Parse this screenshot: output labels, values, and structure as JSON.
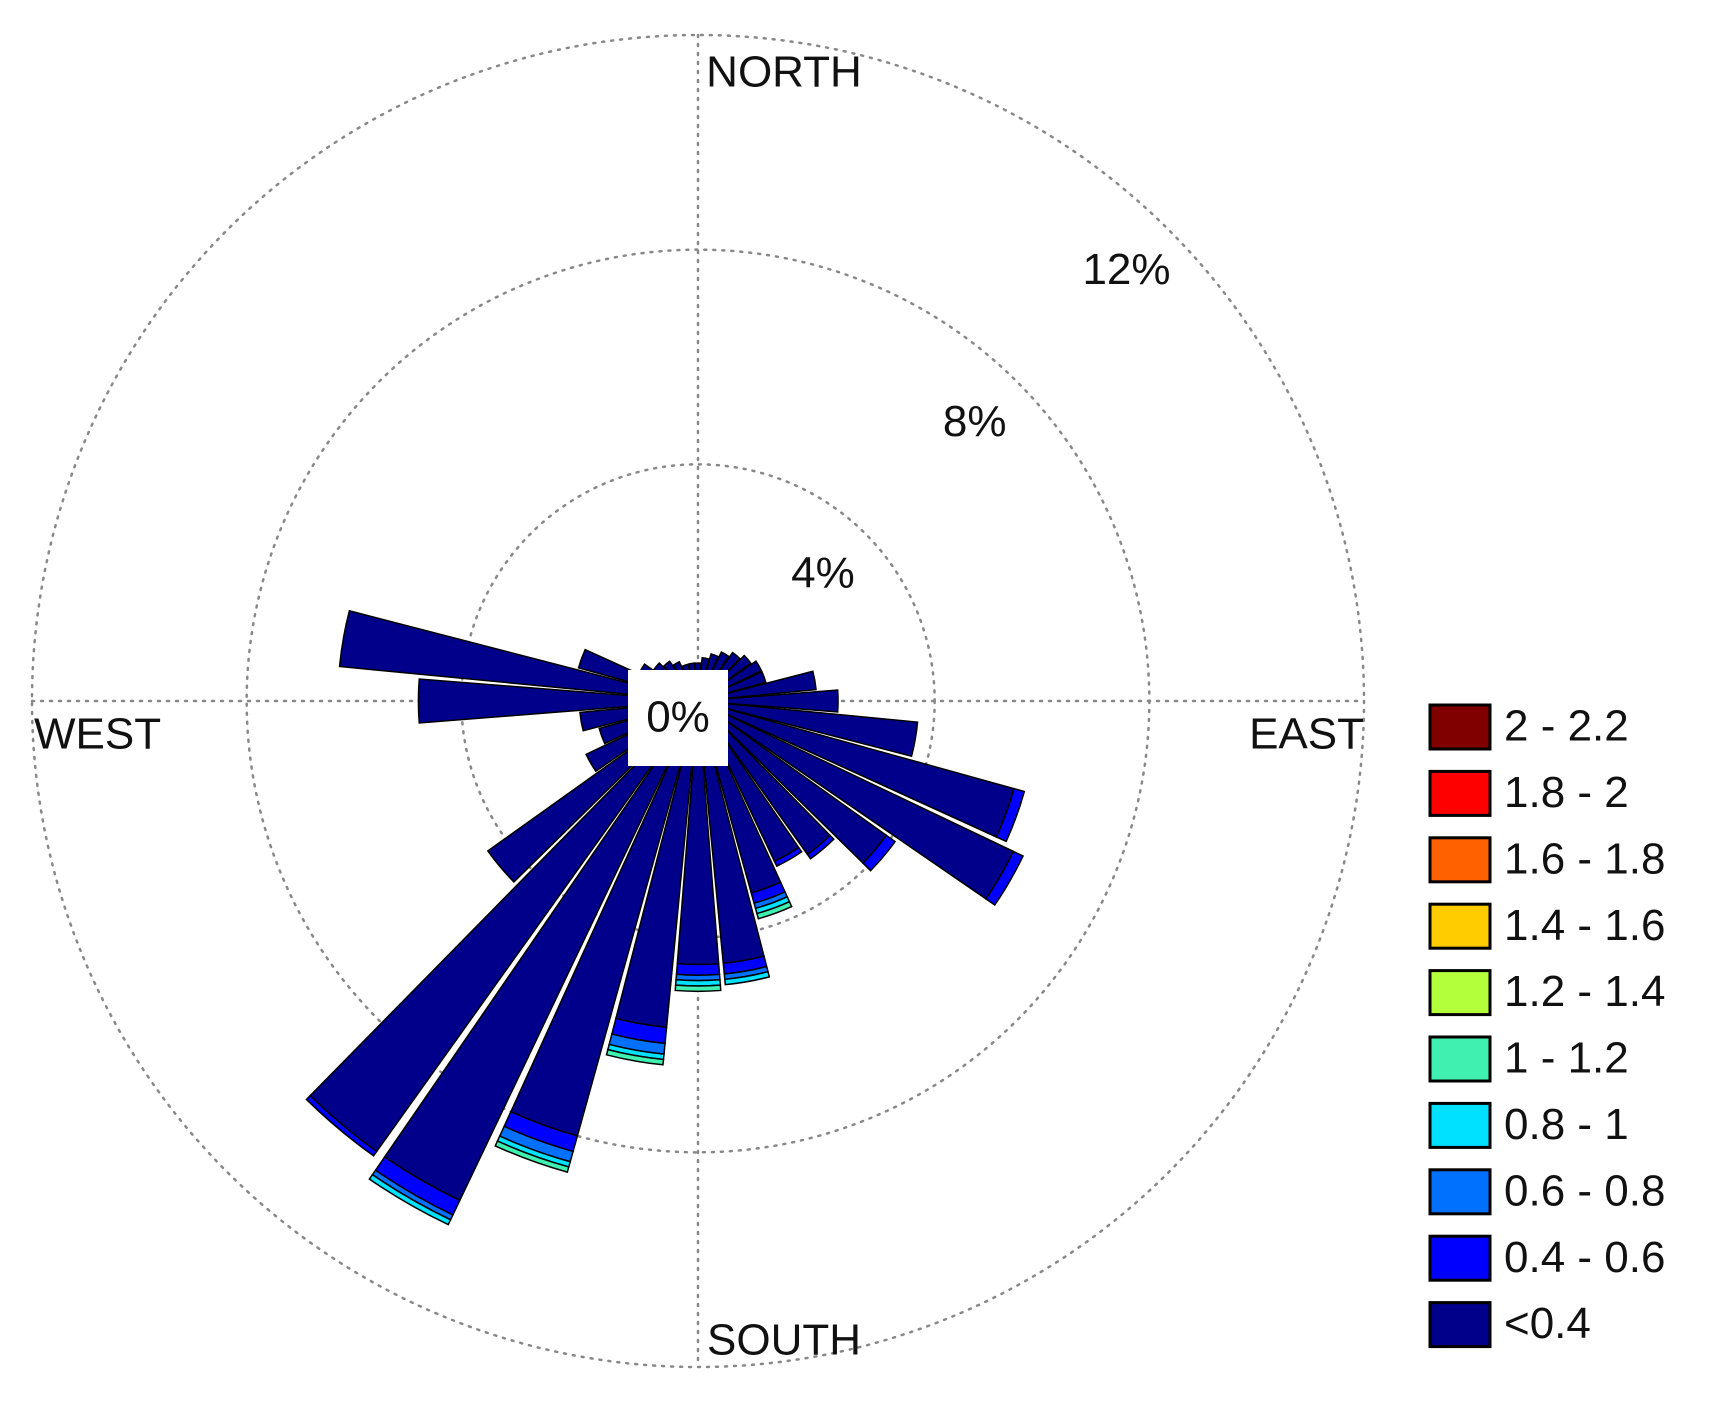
{
  "chart_data": {
    "type": "windrose",
    "direction_labels": {
      "north": "NORTH",
      "east": "EAST",
      "south": "SOUTH",
      "west": "WEST"
    },
    "directions": [
      0,
      10,
      20,
      30,
      40,
      50,
      60,
      70,
      80,
      90,
      100,
      110,
      120,
      130,
      140,
      150,
      160,
      170,
      180,
      190,
      200,
      210,
      220,
      230,
      240,
      250,
      260,
      270,
      280,
      290,
      300,
      310,
      320,
      330,
      340,
      350
    ],
    "rlim": [
      0,
      12
    ],
    "rticks": [
      {
        "value": 0,
        "label": "0%"
      },
      {
        "value": 4,
        "label": "4%"
      },
      {
        "value": 8,
        "label": "8%"
      },
      {
        "value": 12,
        "label": "12%"
      }
    ],
    "grid": true,
    "legend": "right",
    "series": [
      {
        "name": "<0.4",
        "color": "#00008b",
        "values": [
          0.3,
          0.4,
          0.5,
          0.6,
          0.7,
          0.8,
          0.9,
          0.9,
          1.8,
          2.2,
          3.7,
          5.7,
          6.1,
          3.9,
          3.1,
          2.9,
          3.3,
          4.5,
          4.5,
          5.7,
          8,
          9.9,
          9.9,
          4.4,
          1.9,
          1.5,
          1.8,
          4.8,
          6.3,
          1.9,
          0.8,
          0.6,
          0.5,
          0.4,
          0.3,
          0.3
        ]
      },
      {
        "name": "0.4 - 0.6",
        "color": "#0000ff",
        "values": [
          0,
          0,
          0,
          0,
          0,
          0,
          0,
          0,
          0,
          0,
          0,
          0.2,
          0.2,
          0.2,
          0.1,
          0.1,
          0.2,
          0.2,
          0.2,
          0.3,
          0.3,
          0.3,
          0.1,
          0,
          0,
          0,
          0,
          0,
          0,
          0,
          0,
          0,
          0,
          0,
          0,
          0
        ]
      },
      {
        "name": "0.6 - 0.8",
        "color": "#0070ff",
        "values": [
          0,
          0,
          0,
          0,
          0,
          0,
          0,
          0,
          0,
          0,
          0,
          0,
          0,
          0,
          0,
          0,
          0.1,
          0.1,
          0.1,
          0.2,
          0.2,
          0.1,
          0,
          0,
          0,
          0,
          0,
          0,
          0,
          0,
          0,
          0,
          0,
          0,
          0,
          0
        ]
      },
      {
        "name": "0.8 - 1",
        "color": "#00e0ff",
        "values": [
          0,
          0,
          0,
          0,
          0,
          0,
          0,
          0,
          0,
          0,
          0,
          0,
          0,
          0,
          0,
          0,
          0.1,
          0.1,
          0.1,
          0.1,
          0.1,
          0.1,
          0,
          0,
          0,
          0,
          0,
          0,
          0,
          0,
          0,
          0,
          0,
          0,
          0,
          0
        ]
      },
      {
        "name": "1 - 1.2",
        "color": "#40f0b0",
        "values": [
          0,
          0,
          0,
          0,
          0,
          0,
          0,
          0,
          0,
          0,
          0,
          0,
          0,
          0,
          0,
          0,
          0.1,
          0,
          0.1,
          0.1,
          0.1,
          0,
          0,
          0,
          0,
          0,
          0,
          0,
          0,
          0,
          0,
          0,
          0,
          0,
          0,
          0
        ]
      },
      {
        "name": "1.2 - 1.4",
        "color": "#b4ff3c",
        "values": [
          0,
          0,
          0,
          0,
          0,
          0,
          0,
          0,
          0,
          0,
          0,
          0,
          0,
          0,
          0,
          0,
          0,
          0,
          0,
          0,
          0,
          0,
          0,
          0,
          0,
          0,
          0,
          0,
          0,
          0,
          0,
          0,
          0,
          0,
          0,
          0
        ]
      },
      {
        "name": "1.4 - 1.6",
        "color": "#ffcc00",
        "values": [
          0,
          0,
          0,
          0,
          0,
          0,
          0,
          0,
          0,
          0,
          0,
          0,
          0,
          0,
          0,
          0,
          0,
          0,
          0,
          0,
          0,
          0,
          0,
          0,
          0,
          0,
          0,
          0,
          0,
          0,
          0,
          0,
          0,
          0,
          0,
          0
        ]
      },
      {
        "name": "1.6 - 1.8",
        "color": "#ff6000",
        "values": [
          0,
          0,
          0,
          0,
          0,
          0,
          0,
          0,
          0,
          0,
          0,
          0,
          0,
          0,
          0,
          0,
          0,
          0,
          0,
          0,
          0,
          0,
          0,
          0,
          0,
          0,
          0,
          0,
          0,
          0,
          0,
          0,
          0,
          0,
          0,
          0
        ]
      },
      {
        "name": "1.8 - 2",
        "color": "#ff0000",
        "values": [
          0,
          0,
          0,
          0,
          0,
          0,
          0,
          0,
          0,
          0,
          0,
          0,
          0,
          0,
          0,
          0,
          0,
          0,
          0,
          0,
          0,
          0,
          0,
          0,
          0,
          0,
          0,
          0,
          0,
          0,
          0,
          0,
          0,
          0,
          0,
          0
        ]
      },
      {
        "name": "2 - 2.2",
        "color": "#800000",
        "values": [
          0,
          0,
          0,
          0,
          0,
          0,
          0,
          0,
          0,
          0,
          0,
          0,
          0,
          0,
          0,
          0,
          0,
          0,
          0,
          0,
          0,
          0,
          0,
          0,
          0,
          0,
          0,
          0,
          0,
          0,
          0,
          0,
          0,
          0,
          0,
          0
        ]
      }
    ]
  }
}
